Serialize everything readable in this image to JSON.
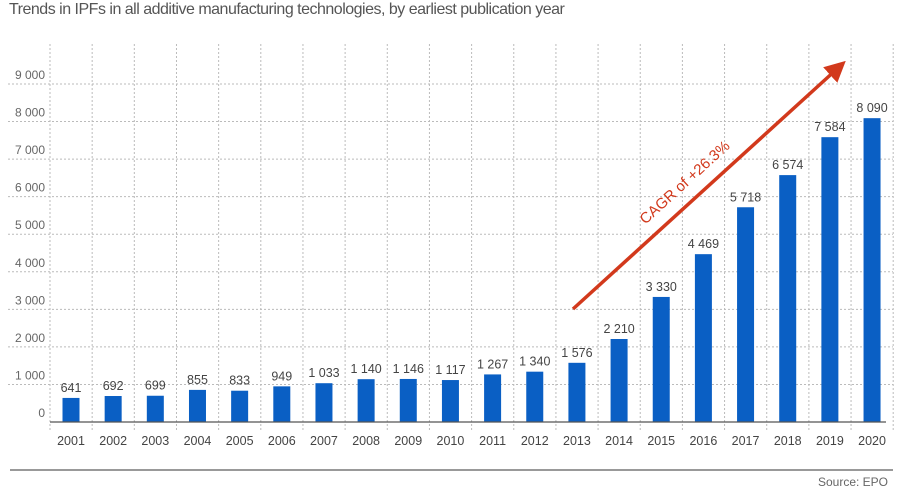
{
  "chart_data": {
    "type": "bar",
    "title": "Trends in IPFs in all additive manufacturing technologies, by earliest publication year",
    "categories": [
      "2001",
      "2002",
      "2003",
      "2004",
      "2005",
      "2006",
      "2007",
      "2008",
      "2009",
      "2010",
      "2011",
      "2012",
      "2013",
      "2014",
      "2015",
      "2016",
      "2017",
      "2018",
      "2019",
      "2020"
    ],
    "values": [
      641,
      692,
      699,
      855,
      833,
      949,
      1033,
      1140,
      1146,
      1117,
      1267,
      1340,
      1576,
      2210,
      3330,
      4469,
      5718,
      6574,
      7584,
      8090
    ],
    "value_labels": [
      "641",
      "692",
      "699",
      "855",
      "833",
      "949",
      "1 033",
      "1 140",
      "1 146",
      "1 117",
      "1 267",
      "1 340",
      "1 576",
      "2 210",
      "3 330",
      "4 469",
      "5 718",
      "6 574",
      "7 584",
      "8 090"
    ],
    "yticks": [
      0,
      1000,
      2000,
      3000,
      4000,
      5000,
      6000,
      7000,
      8000,
      9000
    ],
    "ytick_labels": [
      "0",
      "1 000",
      "2 000",
      "3 000",
      "4 000",
      "5 000",
      "6 000",
      "7 000",
      "8 000",
      "9 000"
    ],
    "ylim": [
      0,
      9000
    ],
    "grid": true,
    "xlabel": "",
    "ylabel": "",
    "annotation": {
      "text": "CAGR of +26.3%",
      "from_year": "2013",
      "to_year": "2020"
    },
    "colors": {
      "bar": "#0a5fc4",
      "arrow": "#d2391c",
      "text": "#444444",
      "grid": "#bbbbbb"
    }
  },
  "source": "Source: EPO"
}
